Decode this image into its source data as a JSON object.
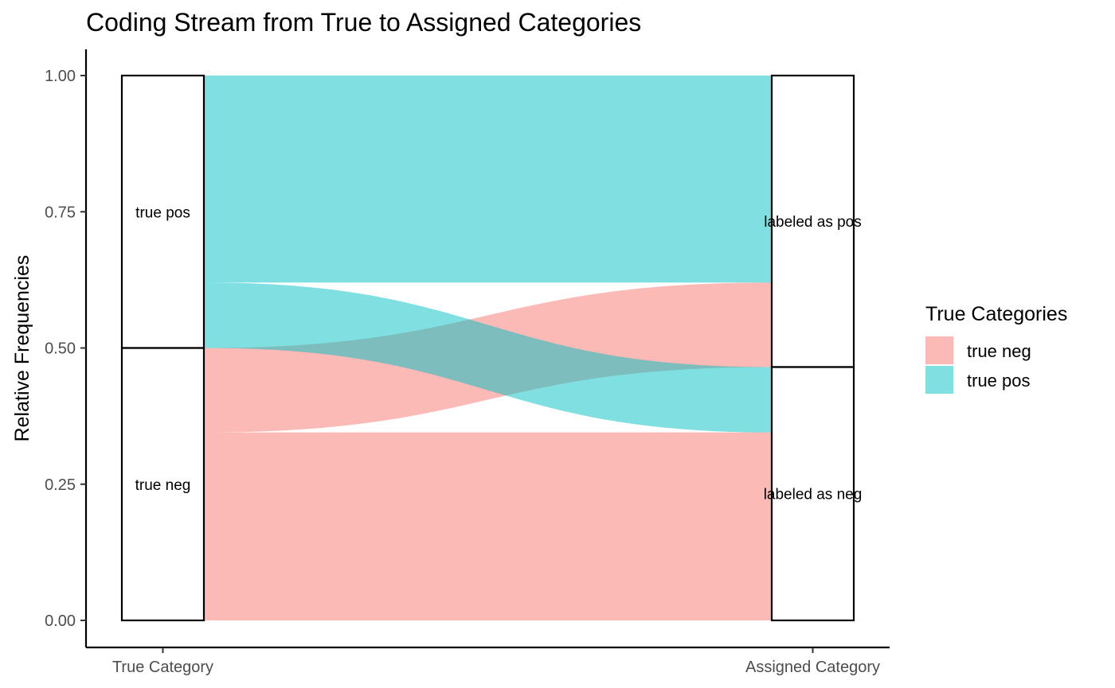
{
  "chart_data": {
    "type": "alluvial",
    "title": "Coding Stream from True to Assigned Categories",
    "ylabel": "Relative Frequencies",
    "xlabel": "",
    "ylim": [
      0,
      1
    ],
    "y_ticks": [
      "0.00",
      "0.25",
      "0.50",
      "0.75",
      "1.00"
    ],
    "axes": [
      "True Category",
      "Assigned Category"
    ],
    "strata": {
      "left": [
        {
          "label": "true neg",
          "from": 0.0,
          "to": 0.5
        },
        {
          "label": "true pos",
          "from": 0.5,
          "to": 1.0
        }
      ],
      "right": [
        {
          "label": "labeled as neg",
          "from": 0.0,
          "to": 0.465
        },
        {
          "label": "labeled as pos",
          "from": 0.465,
          "to": 1.0
        }
      ]
    },
    "flows": [
      {
        "series": "true neg",
        "assigned": "labeled as neg",
        "value": 0.345
      },
      {
        "series": "true neg",
        "assigned": "labeled as pos",
        "value": 0.155
      },
      {
        "series": "true pos",
        "assigned": "labeled as neg",
        "value": 0.12
      },
      {
        "series": "true pos",
        "assigned": "labeled as pos",
        "value": 0.38
      }
    ],
    "legend": {
      "title": "True Categories",
      "placement": "right",
      "entries": [
        {
          "name": "true neg",
          "color": "#F8766D"
        },
        {
          "name": "true pos",
          "color": "#00BFC4"
        }
      ]
    },
    "grid": false
  }
}
